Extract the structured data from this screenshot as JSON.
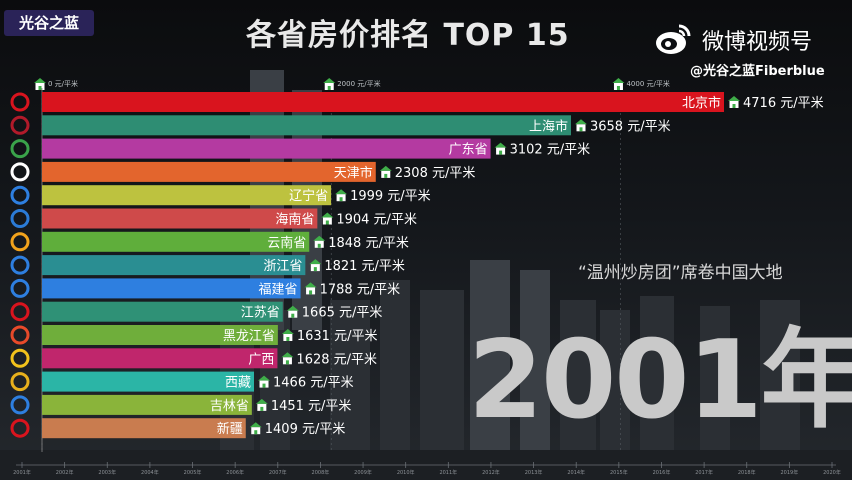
{
  "logo_text": "光谷之蓝",
  "title": "各省房价排名 TOP 15",
  "watermark": {
    "platform": "微博视频号",
    "handle": "@光谷之蓝Fiberblue"
  },
  "annotation": "“温州炒房团”席卷中国大地",
  "year_label": "2001年",
  "colors": {
    "北京市": "#d9141e",
    "上海市": "#2e8d73",
    "广东省": "#b43aa1",
    "天津市": "#e3652d",
    "辽宁省": "#bdc23f",
    "海南省": "#cf4a4a",
    "云南省": "#5fae3b",
    "浙江省": "#2a8e92",
    "福建省": "#2e7fe0",
    "江苏省": "#2f9176",
    "黑龙江省": "#6fae3b",
    "广西": "#c0266c",
    "西藏": "#2bb5a6",
    "吉林省": "#8ab43a",
    "新疆": "#c97c4f"
  },
  "chart_data": {
    "type": "bar",
    "orientation": "horizontal",
    "unit": "元/平米",
    "xlim": [
      0,
      4716
    ],
    "axis_ticks": [
      {
        "value": 0,
        "label": "0 元/平米"
      },
      {
        "value": 2000,
        "label": "2000 元/平米"
      },
      {
        "value": 4000,
        "label": "4000 元/平米"
      }
    ],
    "categories": [
      "北京市",
      "上海市",
      "广东省",
      "天津市",
      "辽宁省",
      "海南省",
      "云南省",
      "浙江省",
      "福建省",
      "江苏省",
      "黑龙江省",
      "广西",
      "西藏",
      "吉林省",
      "新疆"
    ],
    "values": [
      4716,
      3658,
      3102,
      2308,
      1999,
      1904,
      1848,
      1821,
      1788,
      1665,
      1631,
      1628,
      1466,
      1451,
      1409
    ],
    "value_labels": [
      "4716 元/平米",
      "3658 元/平米",
      "3102 元/平米",
      "2308 元/平米",
      "1999 元/平米",
      "1904 元/平米",
      "1848 元/平米",
      "1821 元/平米",
      "1788 元/平米",
      "1665 元/平米",
      "1631 元/平米",
      "1628 元/平米",
      "1466 元/平米",
      "1451 元/平米",
      "1409 元/平米"
    ],
    "timeline": [
      "2001年",
      "2002年",
      "2003年",
      "2004年",
      "2005年",
      "2006年",
      "2007年",
      "2008年",
      "2009年",
      "2010年",
      "2011年",
      "2012年",
      "2013年",
      "2014年",
      "2015年",
      "2016年",
      "2017年",
      "2018年",
      "2019年",
      "2020年"
    ]
  }
}
